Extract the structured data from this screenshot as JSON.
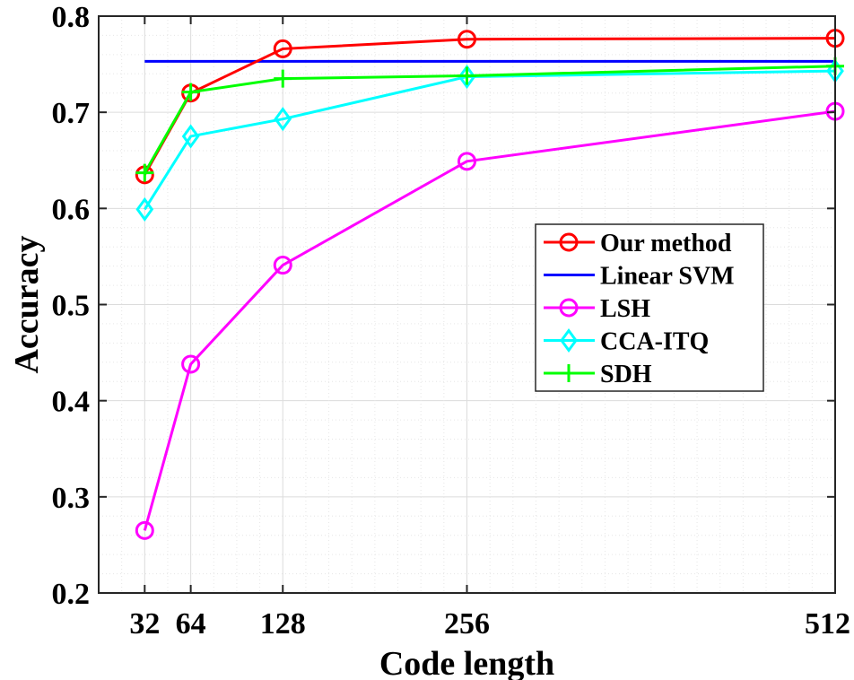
{
  "chart_data": {
    "type": "line",
    "title": "",
    "xlabel": "Code length",
    "ylabel": "Accuracy",
    "x": [
      32,
      64,
      128,
      256,
      512
    ],
    "xticks": [
      "32",
      "64",
      "128",
      "256",
      "512"
    ],
    "yticks": [
      "0.2",
      "0.3",
      "0.4",
      "0.5",
      "0.6",
      "0.7",
      "0.8"
    ],
    "xlim": [
      0,
      512
    ],
    "ylim": [
      0.2,
      0.8
    ],
    "grid": true,
    "legend_position": "right",
    "series": [
      {
        "name": "Our method",
        "color": "#ff0000",
        "marker": "circle",
        "values": [
          0.635,
          0.72,
          0.766,
          0.776,
          0.777
        ]
      },
      {
        "name": "Linear SVM",
        "color": "#0000ff",
        "marker": "none",
        "values": [
          0.753,
          0.753,
          0.753,
          0.753,
          0.753
        ]
      },
      {
        "name": "LSH",
        "color": "#ff00ff",
        "marker": "circle",
        "values": [
          0.265,
          0.438,
          0.541,
          0.649,
          0.701
        ]
      },
      {
        "name": "CCA-ITQ",
        "color": "#00ffff",
        "marker": "diamond",
        "values": [
          0.599,
          0.675,
          0.693,
          0.737,
          0.743
        ]
      },
      {
        "name": "SDH",
        "color": "#00ff00",
        "marker": "plus",
        "values": [
          0.637,
          0.721,
          0.735,
          0.738,
          0.748
        ]
      }
    ]
  }
}
